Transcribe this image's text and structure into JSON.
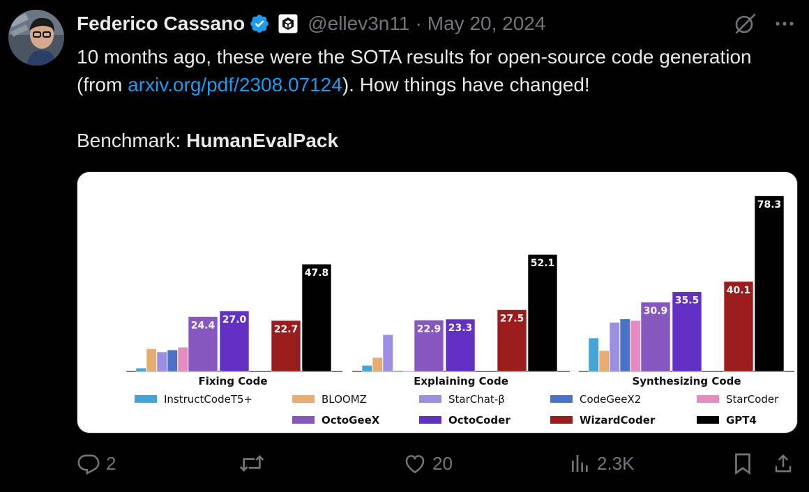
{
  "author": {
    "name": "Federico Cassano",
    "handle": "@ellev3n11",
    "separator": "·",
    "date": "May 20, 2024"
  },
  "tweet": {
    "line1_before": "10 months ago, these were the SOTA results for open-source code generation (from ",
    "link_text": "arxiv.org/pdf/2308.07124",
    "line1_after": "). How things have changed!",
    "bench_prefix": "Benchmark: ",
    "bench_name": "HumanEvalPack"
  },
  "actions": {
    "replies": "2",
    "reposts": "",
    "likes": "20",
    "views": "2.3K"
  },
  "icons": {
    "verified": "verified-badge-icon",
    "affiliation": "affiliation-badge-icon",
    "grok": "grok-icon",
    "more": "more-icon",
    "reply": "reply-icon",
    "repost": "repost-icon",
    "like": "heart-icon",
    "views": "views-icon",
    "bookmark": "bookmark-icon",
    "share": "share-icon"
  },
  "colors": {
    "link": "#1d9bf0",
    "muted": "#71767b",
    "verified": "#1d9bf0"
  },
  "chart_data": {
    "type": "bar",
    "categories": [
      "Fixing Code",
      "Explaining Code",
      "Synthesizing Code"
    ],
    "ylim": [
      0,
      80
    ],
    "series": [
      {
        "name": "InstructCodeT5+",
        "color": "#44a4d8",
        "values": [
          1.5,
          2.7,
          14.9
        ],
        "labeled": false
      },
      {
        "name": "BLOOMZ",
        "color": "#e8ad6e",
        "values": [
          10.1,
          6.2,
          9.3
        ],
        "labeled": false
      },
      {
        "name": "StarChat-β",
        "color": "#9b8ee3",
        "values": [
          8.7,
          16.4,
          21.9
        ],
        "labeled": false
      },
      {
        "name": "CodeGeeX2",
        "color": "#4a72c7",
        "values": [
          9.6,
          0.4,
          23.4
        ],
        "labeled": false
      },
      {
        "name": "StarCoder",
        "color": "#e58bbf",
        "values": [
          10.8,
          0.3,
          22.7
        ],
        "labeled": false
      },
      {
        "name": "OctoGeeX",
        "color": "#8757c0",
        "values": [
          24.4,
          22.9,
          30.9
        ],
        "labeled": true
      },
      {
        "name": "OctoCoder",
        "color": "#6230c5",
        "values": [
          27.0,
          23.3,
          35.5
        ],
        "labeled": true
      },
      {
        "name": "WizardCoder",
        "color": "#9b1c1c",
        "values": [
          22.7,
          27.5,
          40.1
        ],
        "labeled": true
      },
      {
        "name": "GPT4",
        "color": "#000000",
        "values": [
          47.8,
          52.1,
          78.3
        ],
        "labeled": true
      }
    ],
    "value_labels": [
      [
        "",
        "",
        "",
        "",
        "",
        "24.4",
        "27.0",
        "22.7",
        "47.8"
      ],
      [
        "",
        "",
        "",
        "",
        "",
        "22.9",
        "23.3",
        "27.5",
        "52.1"
      ],
      [
        "",
        "",
        "",
        "",
        "",
        "30.9",
        "35.5",
        "40.1",
        "78.3"
      ]
    ],
    "legend_position": "bottom",
    "legend_bold": [
      "OctoGeeX",
      "OctoCoder",
      "WizardCoder",
      "GPT4"
    ],
    "grid": false
  }
}
